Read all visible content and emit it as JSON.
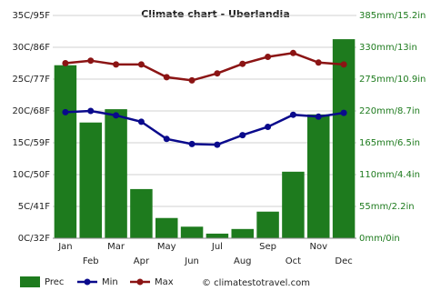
{
  "chart_data": {
    "type": "bar-line",
    "title": "Climate chart - Uberlandia",
    "categories": [
      "Jan",
      "Feb",
      "Mar",
      "Apr",
      "May",
      "Jun",
      "Jul",
      "Aug",
      "Sep",
      "Oct",
      "Nov",
      "Dec"
    ],
    "series": [
      {
        "name": "Prec",
        "type": "bar",
        "axis": "y2",
        "color": "#1e7b1e",
        "values": [
          299,
          200,
          223,
          85,
          35,
          20,
          8,
          16,
          46,
          115,
          214,
          344
        ]
      },
      {
        "name": "Min",
        "type": "line",
        "color": "#0a0a8c",
        "values": [
          19.8,
          20,
          19.3,
          18.3,
          15.6,
          14.8,
          14.7,
          16.2,
          17.5,
          19.4,
          19.1,
          19.7
        ]
      },
      {
        "name": "Max",
        "type": "line",
        "color": "#8b1414",
        "values": [
          27.5,
          27.9,
          27.3,
          27.3,
          25.3,
          24.8,
          25.9,
          27.4,
          28.5,
          29.1,
          27.6,
          27.3
        ]
      }
    ],
    "ylim": [
      0,
      35
    ],
    "yticks": [
      {
        "value": 0,
        "label": "0C/32F"
      },
      {
        "value": 5,
        "label": "5C/41F"
      },
      {
        "value": 10,
        "label": "10C/50F"
      },
      {
        "value": 15,
        "label": "15C/59F"
      },
      {
        "value": 20,
        "label": "20C/68F"
      },
      {
        "value": 25,
        "label": "25C/77F"
      },
      {
        "value": 30,
        "label": "30C/86F"
      },
      {
        "value": 35,
        "label": "35C/95F"
      }
    ],
    "y2lim": [
      0,
      385
    ],
    "y2ticks": [
      {
        "value": 0,
        "label": "0mm/0in"
      },
      {
        "value": 55,
        "label": "55mm/2.2in"
      },
      {
        "value": 110,
        "label": "110mm/4.4in"
      },
      {
        "value": 165,
        "label": "165mm/6.5in"
      },
      {
        "value": 220,
        "label": "220mm/8.7in"
      },
      {
        "value": 275,
        "label": "275mm/10.9in"
      },
      {
        "value": 330,
        "label": "330mm/13in"
      },
      {
        "value": 385,
        "label": "385mm/15.2in"
      }
    ],
    "grid": true,
    "credit": "© climatestotravel.com"
  }
}
